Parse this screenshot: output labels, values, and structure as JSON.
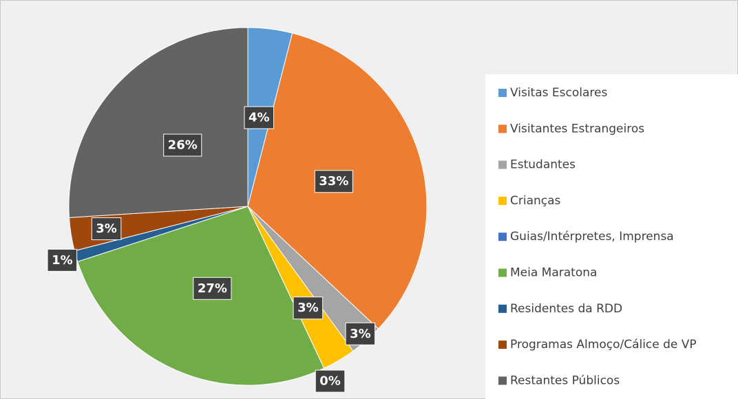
{
  "chart_data": {
    "type": "pie",
    "categories": [
      "Visitas Escolares",
      "Visitantes Estrangeiros",
      "Estudantes",
      "Crianças",
      "Guias/Intérpretes, Imprensa",
      "Meia Maratona",
      "Residentes da RDD",
      "Programas Almoço/Cálice de VP",
      "Restantes Públicos"
    ],
    "values": [
      4,
      33,
      3,
      3,
      0,
      27,
      1,
      3,
      26
    ],
    "value_labels": [
      "4%",
      "33%",
      "3%",
      "3%",
      "0%",
      "27%",
      "1%",
      "3%",
      "26%"
    ],
    "colors": [
      "#5b9bd5",
      "#ed7d31",
      "#a5a5a5",
      "#ffc000",
      "#4472c4",
      "#70ad47",
      "#255e91",
      "#9e480e",
      "#636363"
    ],
    "legend": "right"
  }
}
